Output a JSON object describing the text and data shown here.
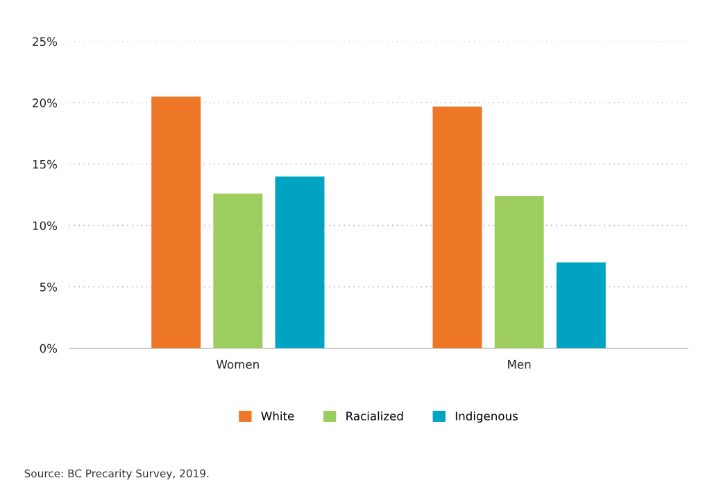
{
  "chart_data": {
    "type": "bar",
    "categories": [
      "Women",
      "Men"
    ],
    "series": [
      {
        "name": "White",
        "color": "#ed7726",
        "values": [
          20.5,
          19.7
        ]
      },
      {
        "name": "Racialized",
        "color": "#9ccd5e",
        "values": [
          12.6,
          12.4
        ]
      },
      {
        "name": "Indigenous",
        "color": "#00a3c1",
        "values": [
          14.0,
          7.0
        ]
      }
    ],
    "ylim": [
      0,
      25
    ],
    "yticks": [
      {
        "value": 0,
        "label": "0%"
      },
      {
        "value": 5,
        "label": "5%"
      },
      {
        "value": 10,
        "label": "10%"
      },
      {
        "value": 15,
        "label": "15%"
      },
      {
        "value": 20,
        "label": "20%"
      },
      {
        "value": 25,
        "label": "25%"
      }
    ],
    "grid": "y",
    "legend": "bottom",
    "annotations": [
      "Source: BC Precarity Survey, 2019."
    ]
  }
}
